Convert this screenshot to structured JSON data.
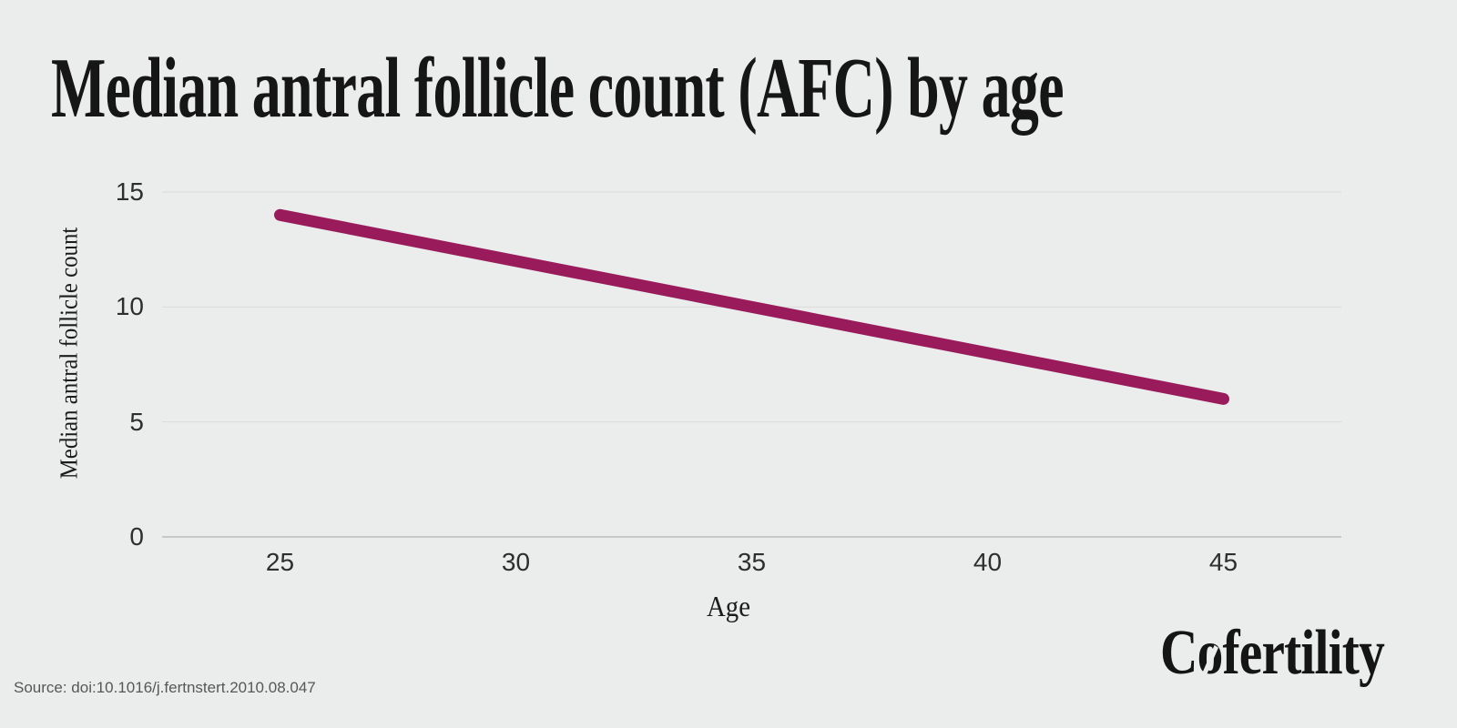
{
  "page": {
    "background": "#ebedec"
  },
  "header": {
    "title": "Median antral follicle count (AFC) by age"
  },
  "chart_data": {
    "type": "line",
    "title": "Median antral follicle count (AFC) by age",
    "xlabel": "Age",
    "ylabel": "Median antral follicle count",
    "points": [
      {
        "x": 25,
        "y": 14
      },
      {
        "x": 45,
        "y": 6
      }
    ],
    "xlim": [
      22.5,
      47.5
    ],
    "ylim": [
      0,
      15
    ],
    "xticks": [
      25,
      30,
      35,
      40,
      45
    ],
    "yticks": [
      15,
      10,
      5,
      0
    ],
    "grid": "horizontal",
    "legend": "none",
    "line_color": "#991b5b",
    "line_width": 13
  },
  "footer": {
    "source": "Source: doi:10.1016/j.fertnstert.2010.08.047",
    "logo_text": "Cofertility"
  },
  "colors": {
    "background": "#ebedec",
    "title_text": "#161616",
    "axis_title_text": "#1c1c1c",
    "tick_text": "#2e2e2e",
    "grid_line": "#dadcdb",
    "zero_line": "#c7c9c8",
    "source_text": "#575757",
    "logo_text": "#151515"
  }
}
